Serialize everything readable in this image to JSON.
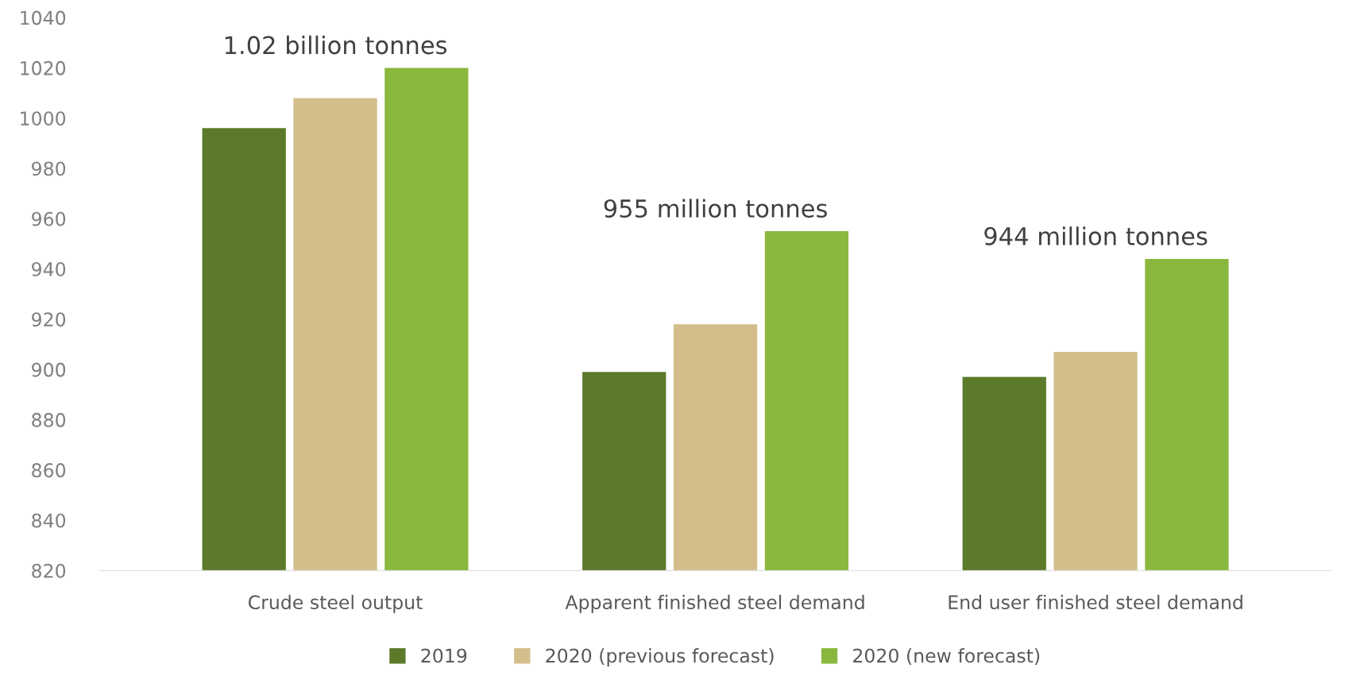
{
  "chart_data": {
    "type": "bar",
    "categories": [
      "Crude steel output",
      "Apparent finished steel demand",
      "End user finished steel demand"
    ],
    "series": [
      {
        "name": "2019",
        "color": "#5b7a2a",
        "values": [
          996,
          899,
          897
        ]
      },
      {
        "name": "2020 (previous forecast)",
        "color": "#d3be8b",
        "values": [
          1008,
          918,
          907
        ]
      },
      {
        "name": "2020 (new forecast)",
        "color": "#8ab83e",
        "values": [
          1020,
          955,
          944
        ]
      }
    ],
    "ylim": [
      820,
      1040
    ],
    "yticks": [
      820,
      840,
      860,
      880,
      900,
      920,
      940,
      960,
      980,
      1000,
      1020,
      1040
    ],
    "grid": false,
    "legend": "bottom",
    "annotations": [
      "1.02 billion tonnes",
      "955 million tonnes",
      "944 million tonnes"
    ]
  }
}
